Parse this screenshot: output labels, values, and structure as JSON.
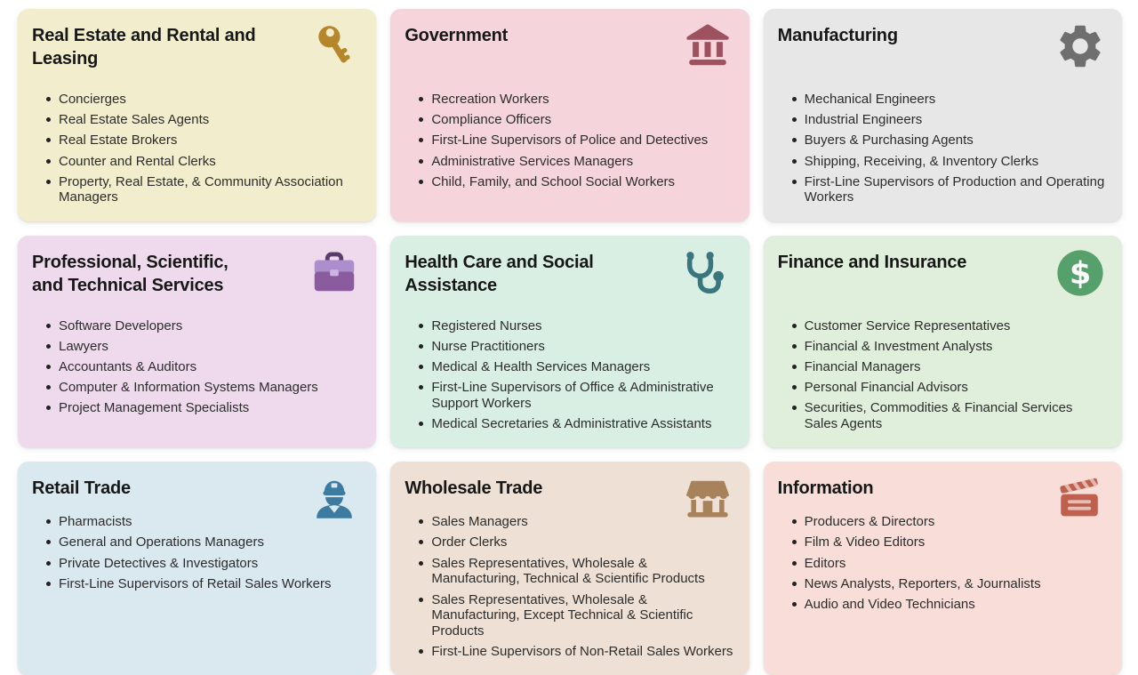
{
  "page": {
    "background": "#ffffff",
    "title_color": "#171717",
    "item_color": "#2c2c2c"
  },
  "cards": [
    {
      "id": "real-estate-rental-leasing",
      "title": "Real Estate and Rental and Leasing",
      "icon": "key",
      "bg": "#f2eecd",
      "icon_color": "#b5872a",
      "items": [
        "Concierges",
        "Real Estate Sales Agents",
        "Real Estate Brokers",
        "Counter and Rental Clerks",
        "Property, Real Estate, & Community Association Managers"
      ]
    },
    {
      "id": "government",
      "title": "Government",
      "icon": "bank",
      "bg": "#f5d5db",
      "icon_color": "#9e5260",
      "items": [
        "Recreation Workers",
        "Compliance Officers",
        "First-Line Supervisors of Police and Detectives",
        "Administrative Services Managers",
        "Child, Family, and School Social Workers"
      ]
    },
    {
      "id": "manufacturing",
      "title": "Manufacturing",
      "icon": "gear",
      "bg": "#e7e7e7",
      "icon_color": "#6f6f6f",
      "items": [
        "Mechanical Engineers",
        "Industrial Engineers",
        "Buyers & Purchasing Agents",
        "Shipping, Receiving, & Inventory Clerks",
        "First-Line Supervisors of Production and Operating Workers"
      ]
    },
    {
      "id": "professional-scientific-technical",
      "title": "Professional, Scientific, and Technical Services",
      "icon": "briefcase",
      "bg": "#efdaed",
      "icon_color": "#8a5c9e",
      "icon_color2": "#ab8ecb",
      "items": [
        "Software Developers",
        "Lawyers",
        "Accountants & Auditors",
        "Computer & Information Systems Managers",
        "Project Management Specialists"
      ]
    },
    {
      "id": "health-care-social-assistance",
      "title": "Health Care and Social Assistance",
      "icon": "stethoscope",
      "bg": "#d9efe4",
      "icon_color": "#3a767e",
      "items": [
        "Registered Nurses",
        "Nurse Practitioners",
        "Medical & Health Services Managers",
        "First-Line Supervisors of Office & Administrative Support Workers",
        "Medical Secretaries & Administrative Assistants"
      ]
    },
    {
      "id": "finance-insurance",
      "title": "Finance and Insurance",
      "icon": "dollar",
      "bg": "#e0efdb",
      "icon_color": "#55a06b",
      "items": [
        "Customer Service Representatives",
        "Financial & Investment Analysts",
        "Financial Managers",
        "Personal Financial Advisors",
        "Securities, Commodities & Financial Services Sales Agents"
      ]
    },
    {
      "id": "retail-trade",
      "title": "Retail Trade",
      "icon": "worker",
      "bg": "#dae8f0",
      "icon_color": "#3d7ca0",
      "items": [
        "Pharmacists",
        "General and Operations Managers",
        "Private Detectives & Investigators",
        "First-Line Supervisors of Retail Sales Workers"
      ]
    },
    {
      "id": "wholesale-trade",
      "title": "Wholesale Trade",
      "icon": "store",
      "bg": "#eee0d4",
      "icon_color": "#a8825b",
      "items": [
        "Sales Managers",
        "Order Clerks",
        "Sales Representatives, Wholesale & Manufacturing, Technical & Scientific Products",
        "Sales Representatives, Wholesale & Manufacturing, Except Technical & Scientific Products",
        "First-Line Supervisors of Non-Retail Sales Workers"
      ]
    },
    {
      "id": "information",
      "title": "Information",
      "icon": "clapperboard",
      "bg": "#f8ddd8",
      "icon_color": "#bf5f4d",
      "items": [
        "Producers & Directors",
        "Film & Video Editors",
        "Editors",
        "News Analysts, Reporters, & Journalists",
        "Audio and Video Technicians"
      ]
    }
  ]
}
